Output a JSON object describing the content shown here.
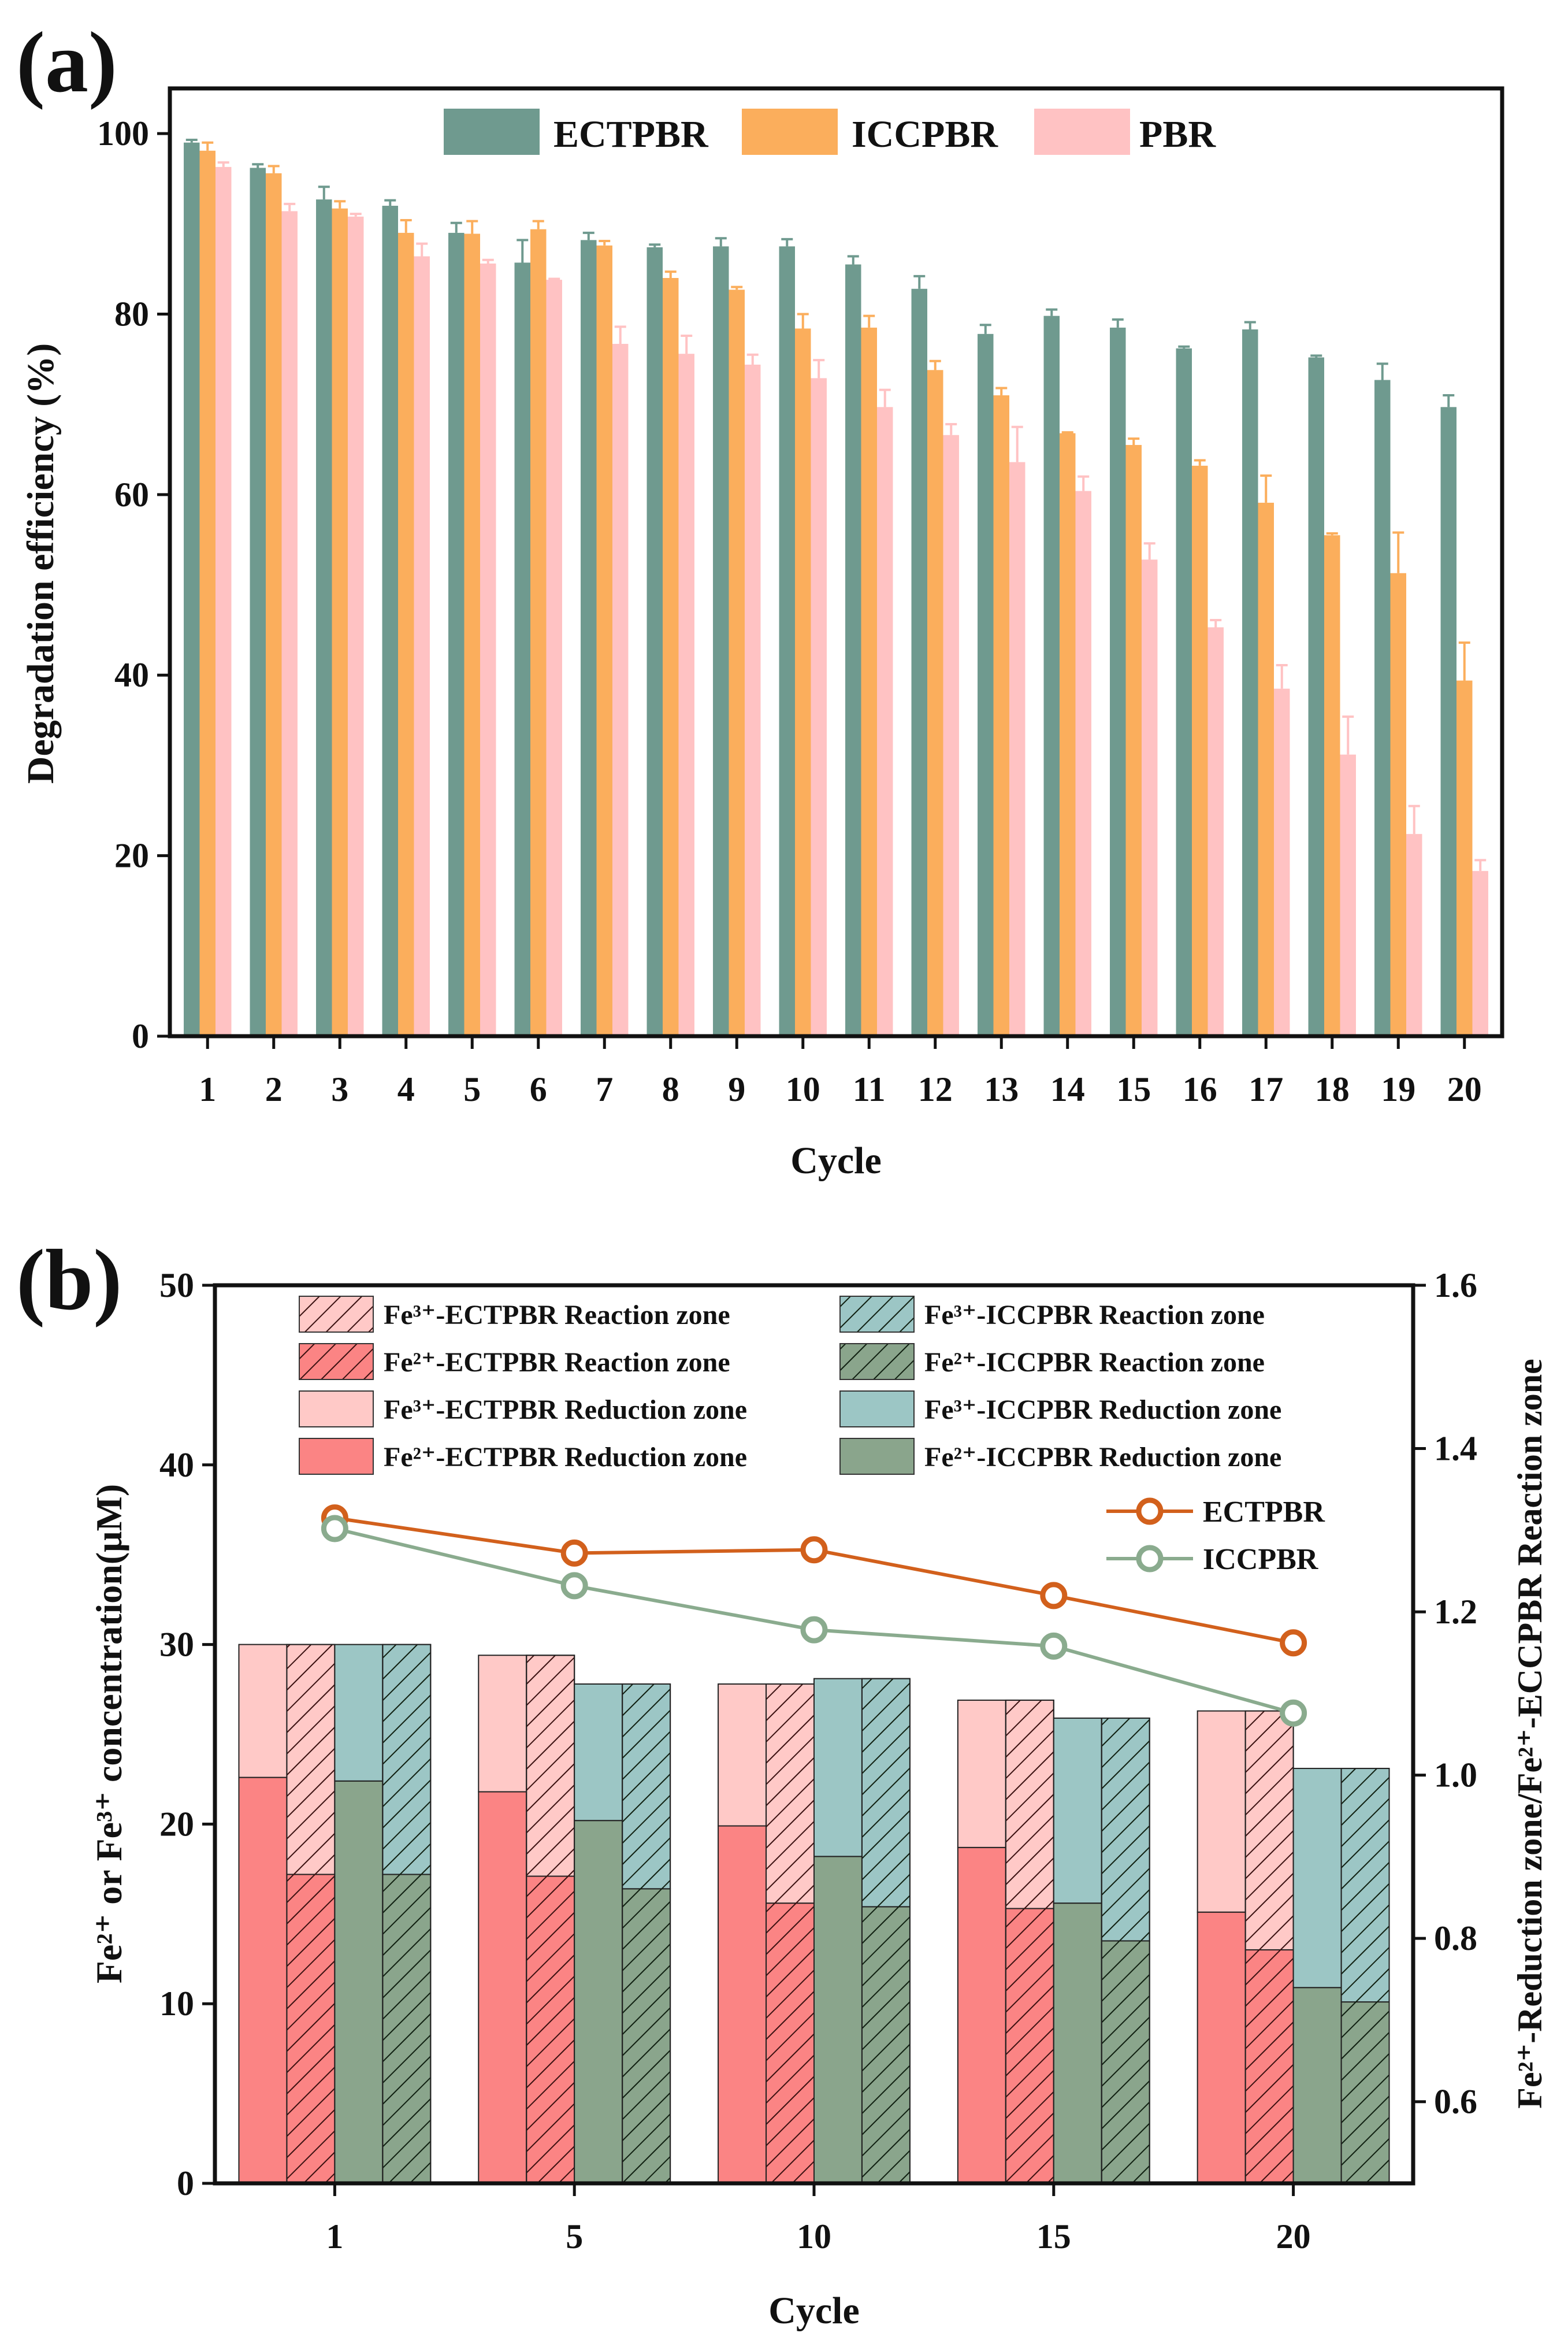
{
  "figure": {
    "panel_a_label": "(a)",
    "panel_b_label": "(b)"
  },
  "colors": {
    "ECTPBR": "#6f9a8f",
    "ICCPBR": "#fbae5c",
    "PBR": "#ffc2c3",
    "fe3_ect": "#ffc9c7",
    "fe2_ect": "#fb8484",
    "fe3_icc": "#9cc6c5",
    "fe2_icc": "#8aa58c",
    "line_ect": "#d2601c",
    "line_icc": "#8aab8e"
  },
  "chart_data": [
    {
      "type": "bar",
      "title": "",
      "xlabel": "Cycle",
      "ylabel": "Degradation efficiency (%)",
      "ylim": [
        0,
        105
      ],
      "yticks": [
        "0",
        "20",
        "40",
        "60",
        "80",
        "100"
      ],
      "categories": [
        "1",
        "2",
        "3",
        "4",
        "5",
        "6",
        "7",
        "8",
        "9",
        "10",
        "11",
        "12",
        "13",
        "14",
        "15",
        "16",
        "17",
        "18",
        "19",
        "20"
      ],
      "legend": {
        "placement": "top-right",
        "entries": [
          "ECTPBR",
          "ICCPBR",
          "PBR"
        ]
      },
      "series": [
        {
          "name": "ECTPBR",
          "values": [
            99.0,
            96.2,
            92.7,
            92.0,
            89.0,
            85.7,
            88.2,
            87.4,
            87.5,
            87.5,
            85.5,
            82.8,
            77.8,
            79.8,
            78.5,
            76.2,
            78.3,
            75.2,
            72.7,
            69.7
          ],
          "errors": [
            0.3,
            0.4,
            1.4,
            0.6,
            1.1,
            2.5,
            0.8,
            0.3,
            0.9,
            0.8,
            0.9,
            1.4,
            1.0,
            0.7,
            0.9,
            0.2,
            0.8,
            0.2,
            1.8,
            1.3
          ]
        },
        {
          "name": "ICCPBR",
          "values": [
            98.1,
            95.6,
            91.7,
            89.0,
            88.9,
            89.4,
            87.6,
            84.0,
            82.7,
            78.4,
            78.5,
            73.8,
            71.0,
            66.8,
            65.5,
            63.2,
            59.1,
            55.5,
            51.3,
            39.4
          ],
          "errors": [
            0.9,
            0.8,
            0.8,
            1.4,
            1.4,
            0.9,
            0.5,
            0.7,
            0.3,
            1.6,
            1.3,
            1.0,
            0.8,
            0.1,
            0.7,
            0.6,
            3.0,
            0.2,
            4.5,
            4.2
          ]
        },
        {
          "name": "PBR",
          "values": [
            96.3,
            91.4,
            90.8,
            86.4,
            85.6,
            83.8,
            76.7,
            75.6,
            74.4,
            72.9,
            69.7,
            66.6,
            63.6,
            60.4,
            52.8,
            45.3,
            38.5,
            31.2,
            22.4,
            18.3
          ],
          "errors": [
            0.5,
            0.8,
            0.3,
            1.4,
            0.4,
            0.1,
            1.9,
            2.0,
            1.1,
            2.0,
            1.9,
            1.2,
            3.9,
            1.6,
            1.8,
            0.8,
            2.6,
            4.2,
            3.1,
            1.2
          ]
        }
      ]
    },
    {
      "type": "bar",
      "title": "",
      "xlabel": "Cycle",
      "ylabel_left": "Fe²⁺ or Fe³⁺ concentration(μM)",
      "ylabel_right": "Fe²⁺-Reduction zone/Fe²⁺-ECCPBR Reaction zone",
      "ylim": [
        0,
        50
      ],
      "ylim_right": [
        0.5,
        1.6
      ],
      "yticks": [
        "0",
        "10",
        "20",
        "30",
        "40",
        "50"
      ],
      "yticks_right": [
        "0.6",
        "0.8",
        "1.0",
        "1.2",
        "1.4",
        "1.6"
      ],
      "categories": [
        "1",
        "5",
        "10",
        "15",
        "20"
      ],
      "legend": {
        "placement": "top",
        "bars": [
          "Fe³⁺-ECTPBR Reaction zone",
          "Fe³⁺-ICCPBR Reaction zone",
          "Fe²⁺-ECTPBR Reaction zone",
          "Fe²⁺-ICCPBR Reaction zone",
          "Fe³⁺-ECTPBR Reduction zone",
          "Fe³⁺-ICCPBR Reduction zone",
          "Fe²⁺-ECTPBR Reduction zone",
          "Fe²⁺-ICCPBR Reduction zone"
        ],
        "lines": [
          "ECTPBR",
          "ICCPBR"
        ]
      },
      "stacked_bars": [
        {
          "name": "ECTPBR Reduction zone",
          "hatched": false,
          "fe2": [
            22.6,
            21.8,
            19.9,
            18.7,
            15.1
          ],
          "total": [
            30.0,
            29.4,
            27.8,
            26.9,
            26.3
          ]
        },
        {
          "name": "ECTPBR Reaction zone",
          "hatched": true,
          "fe2": [
            17.2,
            17.1,
            15.6,
            15.3,
            13.0
          ],
          "total": [
            30.0,
            29.4,
            27.8,
            26.9,
            26.3
          ]
        },
        {
          "name": "ICCPBR Reduction zone",
          "hatched": false,
          "fe2": [
            22.4,
            20.2,
            18.2,
            15.6,
            10.9
          ],
          "total": [
            30.0,
            27.8,
            28.1,
            25.9,
            23.1
          ]
        },
        {
          "name": "ICCPBR Reaction zone",
          "hatched": true,
          "fe2": [
            17.2,
            16.4,
            15.4,
            13.5,
            10.1
          ],
          "total": [
            30.0,
            27.8,
            28.1,
            25.9,
            23.1
          ]
        }
      ],
      "lines": [
        {
          "name": "ECTPBR",
          "values": [
            1.315,
            1.272,
            1.276,
            1.22,
            1.162
          ]
        },
        {
          "name": "ICCPBR",
          "values": [
            1.302,
            1.232,
            1.178,
            1.158,
            1.076
          ]
        }
      ]
    }
  ]
}
